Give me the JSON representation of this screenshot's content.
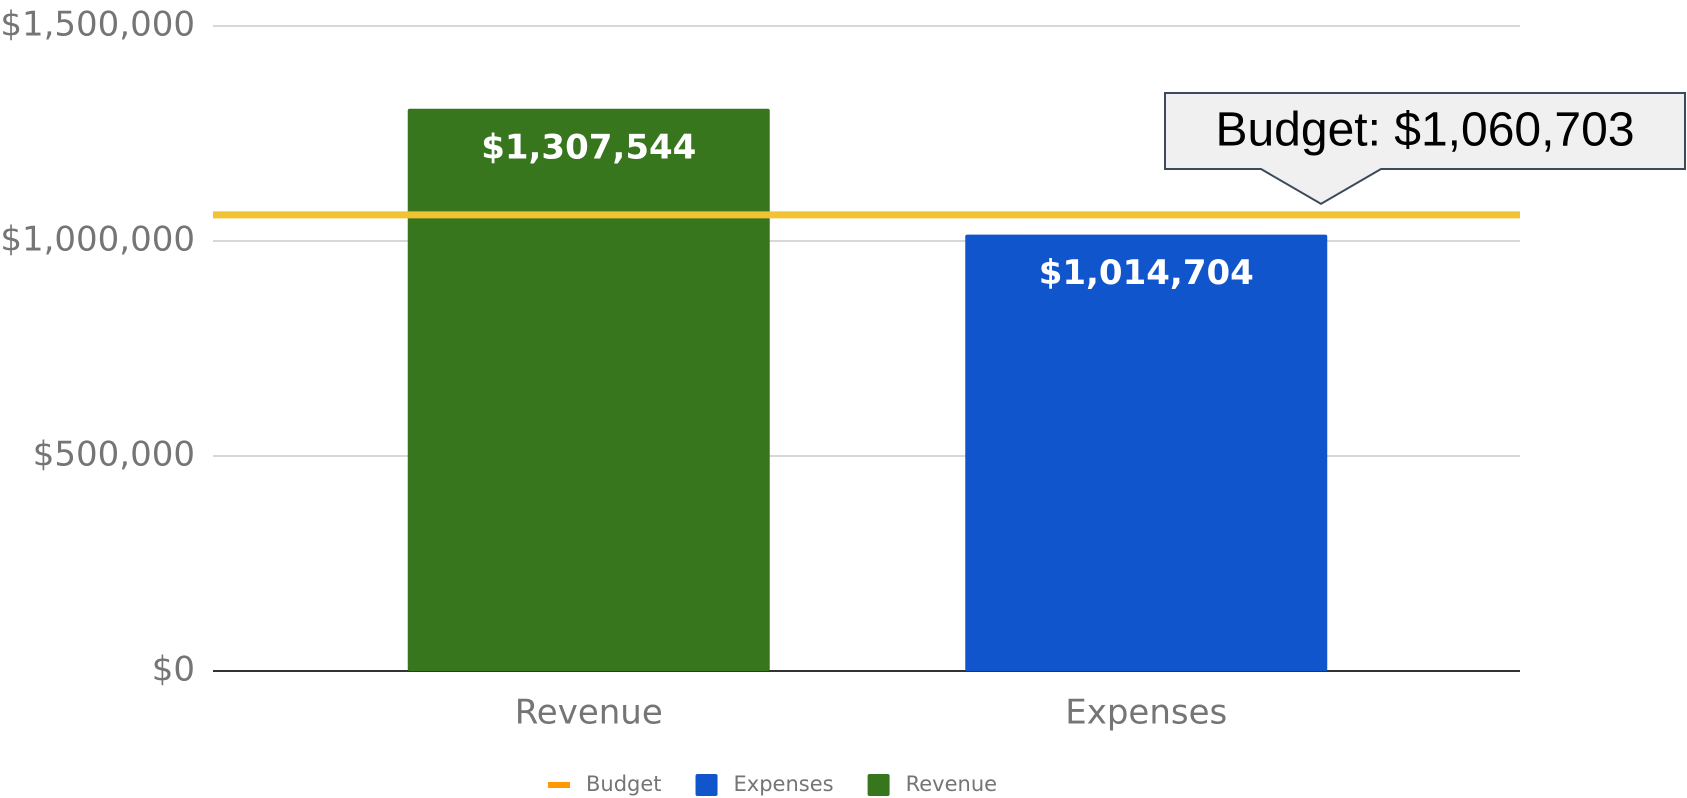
{
  "chart_data": {
    "type": "bar",
    "categories": [
      "Revenue",
      "Expenses"
    ],
    "series": [
      {
        "name": "Budget",
        "type": "line",
        "color": "#f1c232",
        "legend_color": "#ff9900",
        "value": 1060703,
        "label": "Budget: $1,060,703"
      },
      {
        "name": "Expenses",
        "color": "#1155cc",
        "values": [
          null,
          1014704
        ],
        "value_labels": [
          null,
          "$1,014,704"
        ]
      },
      {
        "name": "Revenue",
        "color": "#38761d",
        "values": [
          1307544,
          null
        ],
        "value_labels": [
          "$1,307,544",
          null
        ]
      }
    ],
    "ylim": [
      0,
      1500000
    ],
    "yticks": [
      {
        "value": 0,
        "label": "$0"
      },
      {
        "value": 500000,
        "label": "$500,000"
      },
      {
        "value": 1000000,
        "label": "$1,000,000"
      },
      {
        "value": 1500000,
        "label": "$1,500,000"
      }
    ],
    "grid": true,
    "legend": "bottom"
  }
}
